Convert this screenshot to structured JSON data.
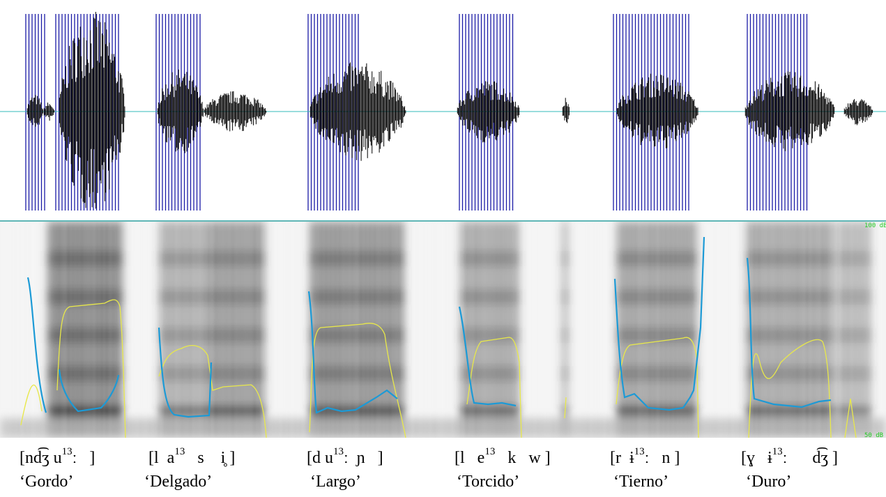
{
  "scale": {
    "top": "100 dB",
    "bottom": "50 dB"
  },
  "words": [
    {
      "pre": "[nd͡ʒ u",
      "tone": "13",
      "post": "ː   ]",
      "gloss": "‘Gordo’"
    },
    {
      "pre": "[l  a",
      "tone": "13",
      "post": "   s    i̥ ]",
      "gloss": "‘Delgado’"
    },
    {
      "pre": "[d u",
      "tone": "13",
      "post": "ː  ɲ   ]",
      "gloss": "‘Largo’"
    },
    {
      "pre": "[l   e",
      "tone": "13",
      "post": "   k   w ]",
      "gloss": "‘Torcido’"
    },
    {
      "pre": "[r  ɨ",
      "tone": "13",
      "post": "ː   n ]",
      "gloss": "‘Tierno’"
    },
    {
      "pre": "[ɣ   ɨ",
      "tone": "13",
      "post": "ː      d͡ʒ ]",
      "gloss": "‘Duro’"
    }
  ]
}
